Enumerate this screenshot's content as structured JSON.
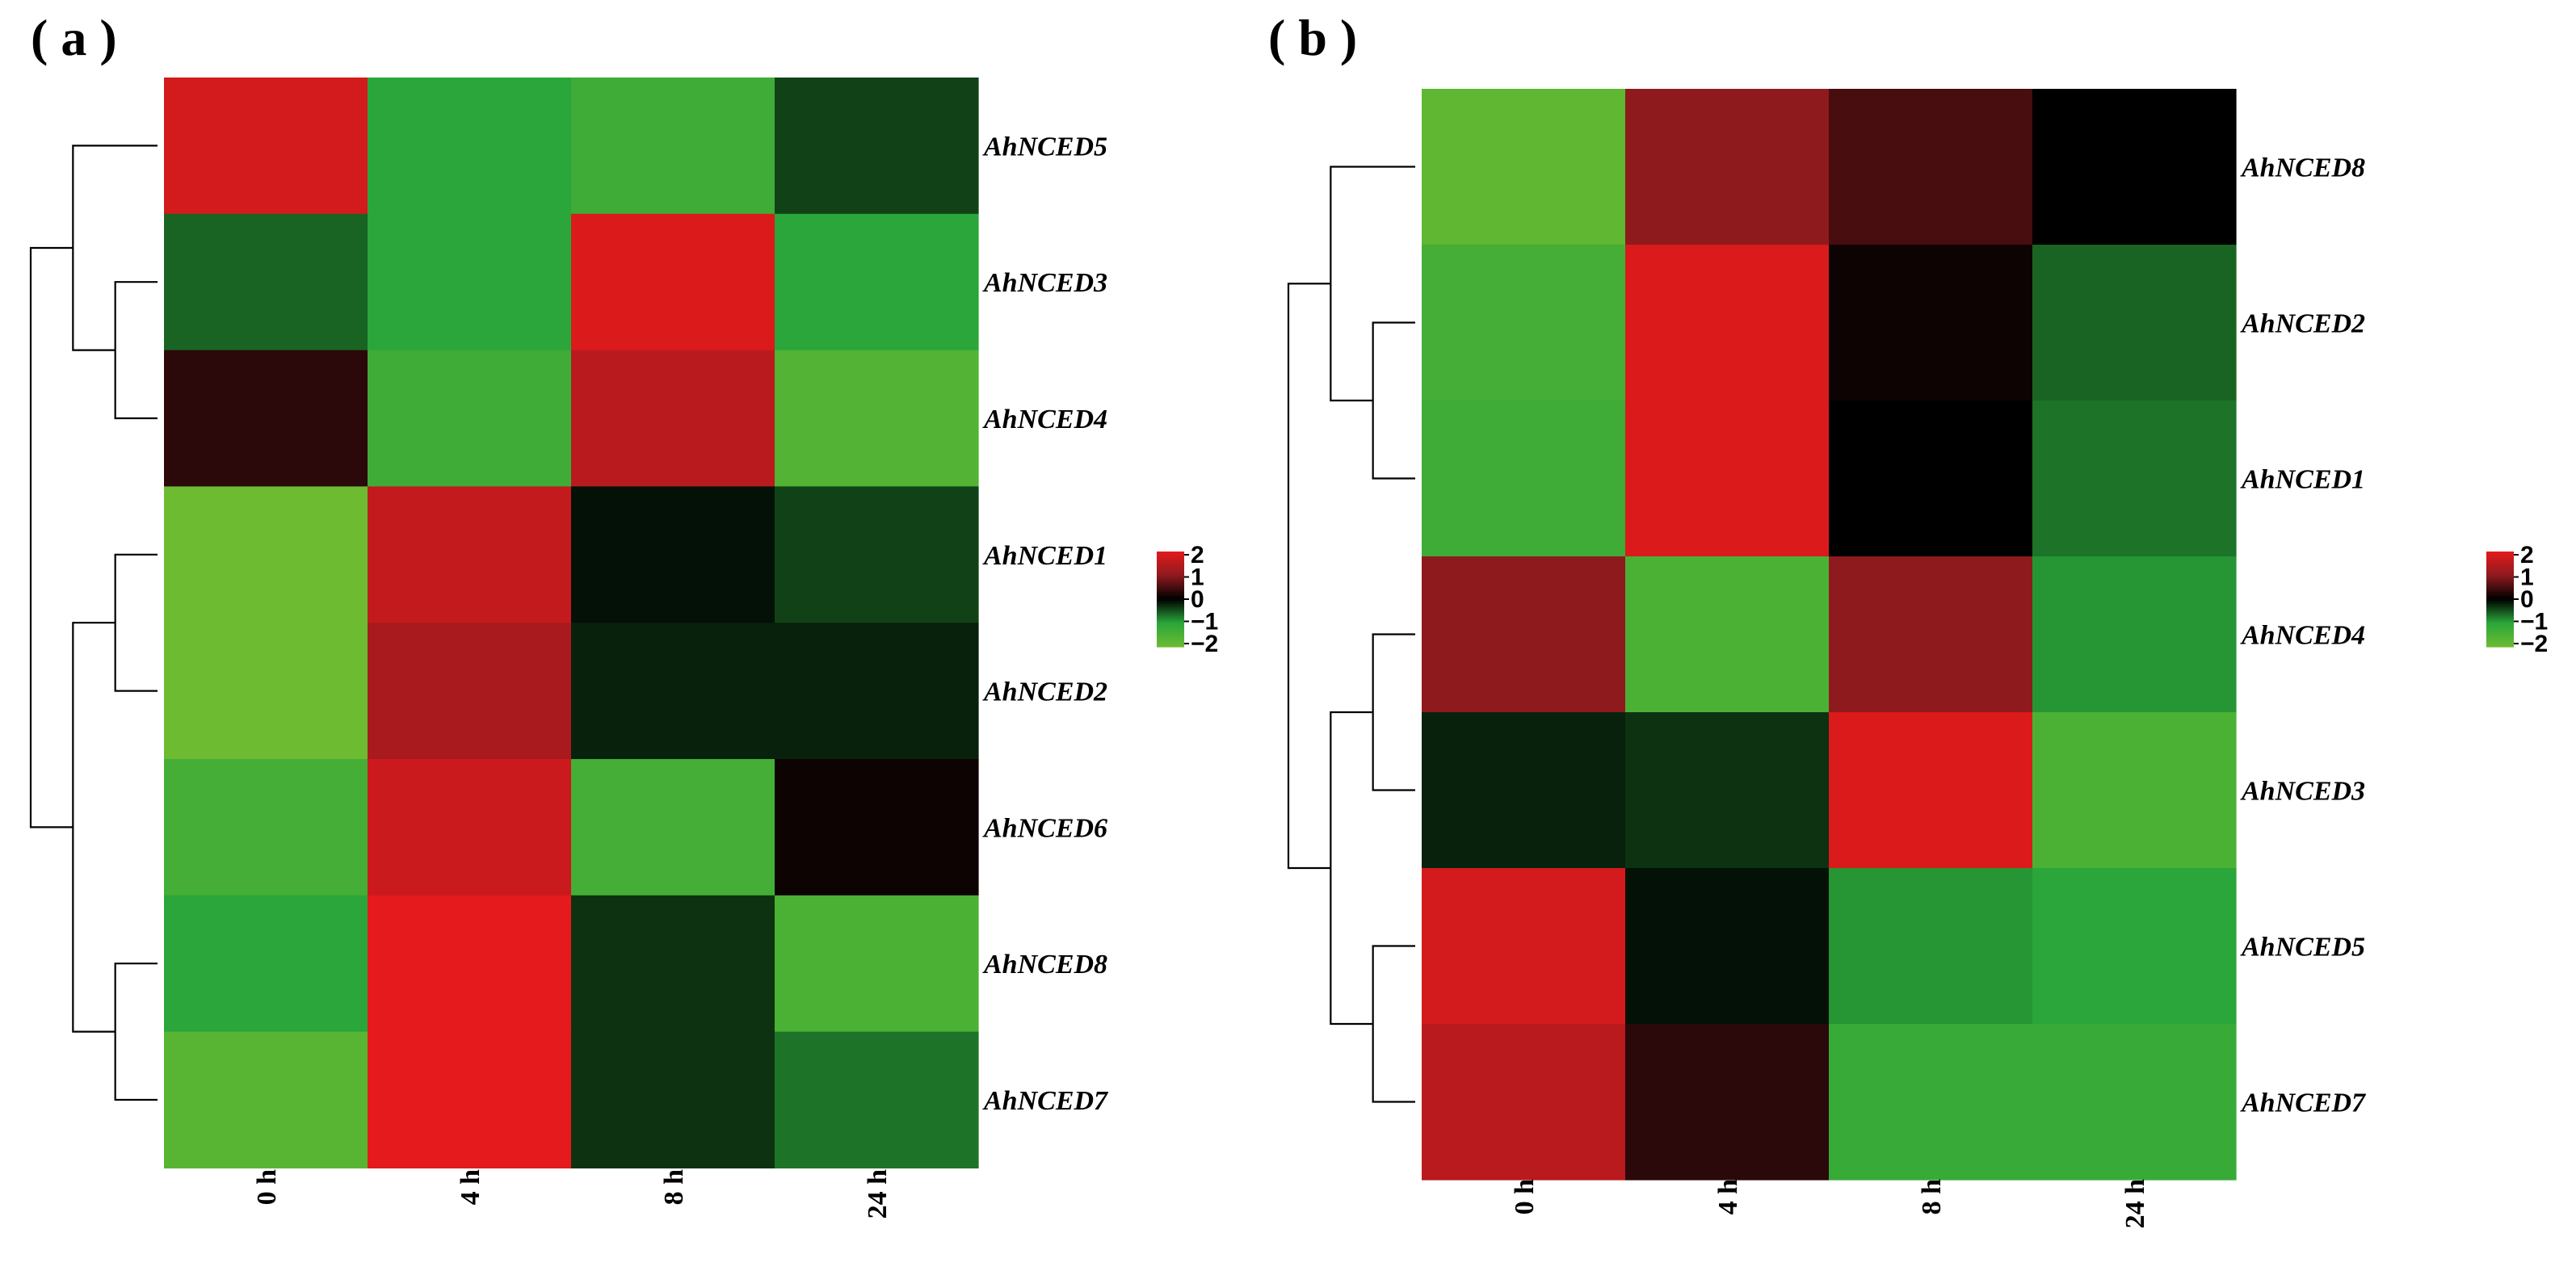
{
  "chart_data": [
    {
      "type": "heatmap",
      "panel_label": "( a )",
      "columns": [
        "0 h",
        "4 h",
        "8 h",
        "24 h"
      ],
      "rows": [
        "AhNCED5",
        "AhNCED3",
        "AhNCED4",
        "AhNCED1",
        "AhNCED2",
        "AhNCED6",
        "AhNCED8",
        "AhNCED7"
      ],
      "values": [
        [
          1.8,
          -1.0,
          -1.3,
          -0.4
        ],
        [
          -0.6,
          -1.0,
          1.9,
          -1.0
        ],
        [
          0.3,
          -1.3,
          1.5,
          -1.6
        ],
        [
          -2.0,
          1.6,
          -0.1,
          -0.4
        ],
        [
          -2.0,
          1.3,
          -0.2,
          -0.2
        ],
        [
          -1.4,
          1.7,
          -1.4,
          0.1
        ],
        [
          -1.0,
          2.0,
          -0.3,
          -1.5
        ],
        [
          -1.7,
          2.0,
          -0.3,
          -0.7
        ]
      ],
      "row_dendrogram": [
        [
          3,
          4
        ],
        [
          6,
          7
        ],
        [
          1,
          2
        ],
        [
          8,
          9
        ],
        [
          0,
          10
        ],
        [
          11,
          12
        ]
      ],
      "color_scale": {
        "min": -2,
        "max": 2,
        "colors": [
          "#6cbb30",
          "#2aa63a",
          "#000000",
          "#8e1a1e",
          "#e41a1c"
        ]
      },
      "legend_ticks": [
        "2",
        "1",
        "0",
        "−1",
        "−2"
      ]
    },
    {
      "type": "heatmap",
      "panel_label": "( b )",
      "columns": [
        "0 h",
        "4 h",
        "8 h",
        "24 h"
      ],
      "rows": [
        "AhNCED8",
        "AhNCED2",
        "AhNCED1",
        "AhNCED4",
        "AhNCED3",
        "AhNCED5",
        "AhNCED7"
      ],
      "values": [
        [
          -1.8,
          1.0,
          0.5,
          0.0
        ],
        [
          -1.4,
          1.9,
          0.1,
          -0.6
        ],
        [
          -1.3,
          1.9,
          0.0,
          -0.7
        ],
        [
          1.0,
          -1.5,
          1.0,
          -0.9
        ],
        [
          -0.2,
          -0.3,
          1.9,
          -1.5
        ],
        [
          1.8,
          -0.1,
          -0.9,
          -1.0
        ],
        [
          1.5,
          0.3,
          -1.2,
          -1.2
        ]
      ],
      "row_dendrogram": [
        [
          1,
          2
        ],
        [
          0,
          7
        ],
        [
          3,
          4
        ],
        [
          5,
          6
        ],
        [
          9,
          10
        ],
        [
          8,
          11
        ]
      ],
      "color_scale": {
        "min": -2,
        "max": 2,
        "colors": [
          "#6cbb30",
          "#2aa63a",
          "#000000",
          "#8e1a1e",
          "#e41a1c"
        ]
      },
      "legend_ticks": [
        "2",
        "1",
        "0",
        "−1",
        "−2"
      ]
    }
  ]
}
